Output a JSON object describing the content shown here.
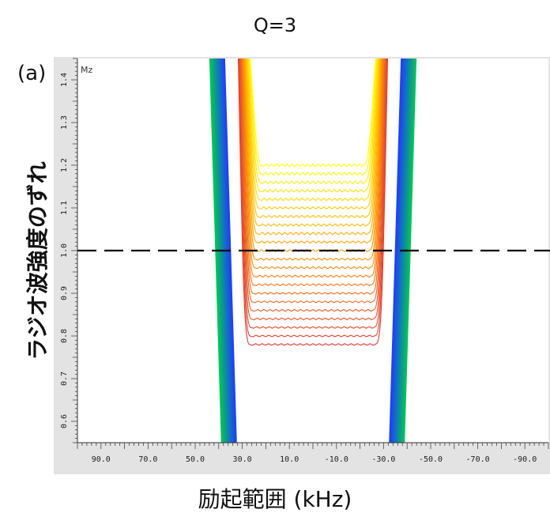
{
  "chart_data": {
    "type": "line",
    "title": "Q=3",
    "panel_label": "(a)",
    "xlabel": "励起範囲 (kHz)",
    "ylabel": "ラジオ波強度のずれ",
    "corner_label": "Mz",
    "xlim": [
      100,
      -100
    ],
    "ylim": [
      0.55,
      1.45
    ],
    "x_ticks": [
      "90.0",
      "70.0",
      "50.0",
      "30.0",
      "10.0",
      "-10.0",
      "-30.0",
      "-50.0",
      "-70.0",
      "-90.0"
    ],
    "y_ticks": [
      "0.6",
      "0.7",
      "0.8",
      "0.9",
      "1.0",
      "1.1",
      "1.2",
      "1.3",
      "1.4"
    ],
    "reference_line": {
      "y": 1.0,
      "style": "dashed"
    },
    "contours": {
      "center_plateau": {
        "x_range": [
          27,
          -27
        ],
        "y_min": 0.78,
        "y_max": 1.2,
        "colors": [
          "#e53935",
          "#ff9800",
          "#ffff00"
        ]
      },
      "left_band": {
        "x_at_top": 43,
        "x_at_bottom": 38,
        "colors": [
          "#00c853",
          "#1e40ff"
        ]
      },
      "right_band": {
        "x_at_top": -43,
        "x_at_bottom": -38,
        "colors": [
          "#00c853",
          "#1e40ff"
        ]
      }
    }
  }
}
